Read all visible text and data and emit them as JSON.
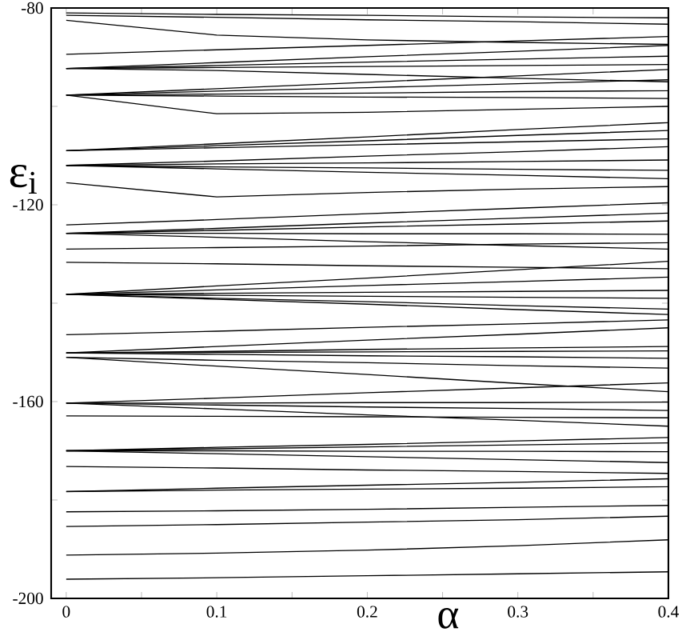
{
  "chart_data": {
    "type": "line",
    "xlabel": "α",
    "ylabel": "ε$_{i}$",
    "color": "#000000",
    "x": [
      0,
      0.1,
      0.2,
      0.3,
      0.4
    ],
    "xlim": [
      -0.01,
      0.4
    ],
    "ylim": [
      -200,
      -80
    ],
    "xticks": [
      0,
      {
        "value": 0.05,
        "label": null
      },
      0.1,
      {
        "value": 0.15,
        "label": null
      },
      0.2,
      {
        "value": 0.25,
        "label": null
      },
      0.3,
      {
        "value": 0.35,
        "label": null
      },
      0.4
    ],
    "yticks": [
      -200,
      {
        "value": -180,
        "label": null
      },
      -160,
      {
        "value": -140,
        "label": null
      },
      -120,
      {
        "value": -100,
        "label": null
      },
      -80
    ],
    "series": [
      {
        "values": [
          -196.1,
          -195.8,
          -195.4,
          -195.0,
          -194.6
        ]
      },
      {
        "values": [
          -191.2,
          -190.8,
          -190.2,
          -189.3,
          -188.1
        ]
      },
      {
        "values": [
          -185.4,
          -185.0,
          -184.5,
          -184.0,
          -183.3
        ]
      },
      {
        "values": [
          -182.4,
          -182.2,
          -181.9,
          -181.5,
          -181.1
        ]
      },
      {
        "values": [
          -178.3,
          -178.0,
          -177.8,
          -177.6,
          -177.3
        ]
      },
      {
        "values": [
          -178.3,
          -177.6,
          -177.0,
          -176.4,
          -175.7
        ]
      },
      {
        "values": [
          -173.2,
          -173.5,
          -173.9,
          -174.2,
          -174.6
        ]
      },
      {
        "values": [
          -170.0,
          -170.6,
          -171.2,
          -171.8,
          -172.4
        ]
      },
      {
        "values": [
          -170.0,
          -170.0,
          -170.1,
          -170.1,
          -170.2
        ]
      },
      {
        "values": [
          -170.0,
          -169.6,
          -169.2,
          -168.8,
          -168.4
        ]
      },
      {
        "values": [
          -170.0,
          -169.3,
          -168.7,
          -168.0,
          -167.3
        ]
      },
      {
        "values": [
          -162.9,
          -163.0,
          -163.1,
          -163.2,
          -163.3
        ]
      },
      {
        "values": [
          -160.3,
          -161.5,
          -162.7,
          -163.8,
          -165.0
        ]
      },
      {
        "values": [
          -160.3,
          -160.7,
          -161.1,
          -161.4,
          -161.8
        ]
      },
      {
        "values": [
          -160.3,
          -160.3,
          -160.2,
          -160.2,
          -160.1
        ]
      },
      {
        "values": [
          -160.3,
          -159.3,
          -158.2,
          -157.2,
          -156.2
        ]
      },
      {
        "values": [
          -151.0,
          -152.8,
          -154.5,
          -156.3,
          -158.0
        ]
      },
      {
        "values": [
          -151.0,
          -151.6,
          -152.1,
          -152.7,
          -153.2
        ]
      },
      {
        "values": [
          -150.1,
          -150.4,
          -150.7,
          -150.9,
          -151.2
        ]
      },
      {
        "values": [
          -150.1,
          -150.0,
          -149.9,
          -149.8,
          -149.7
        ]
      },
      {
        "values": [
          -150.1,
          -149.8,
          -149.4,
          -149.1,
          -148.8
        ]
      },
      {
        "values": [
          -150.1,
          -148.8,
          -147.5,
          -146.3,
          -145.0
        ]
      },
      {
        "values": [
          -146.4,
          -145.7,
          -144.9,
          -144.2,
          -143.4
        ]
      },
      {
        "values": [
          -138.2,
          -139.2,
          -140.2,
          -141.3,
          -142.3
        ]
      },
      {
        "values": [
          -138.2,
          -139.0,
          -139.7,
          -140.5,
          -141.2
        ]
      },
      {
        "values": [
          -138.2,
          -138.4,
          -138.6,
          -138.8,
          -139.0
        ]
      },
      {
        "values": [
          -138.2,
          -138.0,
          -137.8,
          -137.6,
          -137.4
        ]
      },
      {
        "values": [
          -138.2,
          -137.3,
          -136.4,
          -135.6,
          -134.7
        ]
      },
      {
        "values": [
          -138.2,
          -136.5,
          -134.9,
          -133.2,
          -131.5
        ]
      },
      {
        "values": [
          -131.7,
          -132.0,
          -132.4,
          -132.7,
          -133.0
        ]
      },
      {
        "values": [
          -129.0,
          -128.7,
          -128.4,
          -128.0,
          -127.7
        ]
      },
      {
        "values": [
          -125.8,
          -126.6,
          -127.5,
          -128.3,
          -129.0
        ]
      },
      {
        "values": [
          -125.8,
          -125.8,
          -125.9,
          -125.9,
          -126.0
        ]
      },
      {
        "values": [
          -125.8,
          -125.2,
          -124.5,
          -123.9,
          -123.3
        ]
      },
      {
        "values": [
          -125.8,
          -124.8,
          -123.7,
          -122.7,
          -121.7
        ]
      },
      {
        "values": [
          -124.1,
          -123.0,
          -121.8,
          -120.7,
          -119.6
        ]
      },
      {
        "values": [
          -115.5,
          -118.4,
          -117.5,
          -116.8,
          -116.3
        ]
      },
      {
        "values": [
          -112.0,
          -112.7,
          -113.4,
          -114.0,
          -114.7
        ]
      },
      {
        "values": [
          -112.0,
          -112.3,
          -112.5,
          -112.8,
          -113.0
        ]
      },
      {
        "values": [
          -112.0,
          -111.7,
          -111.5,
          -111.2,
          -110.9
        ]
      },
      {
        "values": [
          -112.0,
          -111.1,
          -110.1,
          -109.2,
          -108.2
        ]
      },
      {
        "values": [
          -109.0,
          -108.4,
          -107.8,
          -107.2,
          -106.6
        ]
      },
      {
        "values": [
          -109.0,
          -108.0,
          -107.0,
          -105.9,
          -104.9
        ]
      },
      {
        "values": [
          -109.0,
          -107.6,
          -106.2,
          -104.7,
          -103.3
        ]
      },
      {
        "values": [
          -97.7,
          -101.5,
          -101.2,
          -100.6,
          -100.0
        ]
      },
      {
        "values": [
          -97.7,
          -97.9,
          -98.1,
          -98.2,
          -98.4
        ]
      },
      {
        "values": [
          -97.7,
          -97.5,
          -97.3,
          -97.0,
          -96.8
        ]
      },
      {
        "values": [
          -97.7,
          -96.9,
          -96.2,
          -95.4,
          -94.6
        ]
      },
      {
        "values": [
          -97.7,
          -96.4,
          -95.1,
          -93.8,
          -92.5
        ]
      },
      {
        "values": [
          -92.3,
          -92.7,
          -93.5,
          -94.3,
          -95.0
        ]
      },
      {
        "values": [
          -92.3,
          -92.1,
          -91.9,
          -91.7,
          -91.5
        ]
      },
      {
        "values": [
          -92.3,
          -91.7,
          -91.0,
          -90.4,
          -89.8
        ]
      },
      {
        "values": [
          -92.3,
          -91.1,
          -89.9,
          -88.8,
          -87.6
        ]
      },
      {
        "values": [
          -89.4,
          -88.5,
          -87.6,
          -86.7,
          -85.8
        ]
      },
      {
        "values": [
          -82.5,
          -85.5,
          -86.5,
          -87.0,
          -87.4
        ]
      },
      {
        "values": [
          -81.5,
          -81.9,
          -82.4,
          -82.8,
          -83.3
        ]
      },
      {
        "values": [
          -81.0,
          -81.3,
          -81.5,
          -81.8,
          -82.0
        ]
      }
    ]
  }
}
